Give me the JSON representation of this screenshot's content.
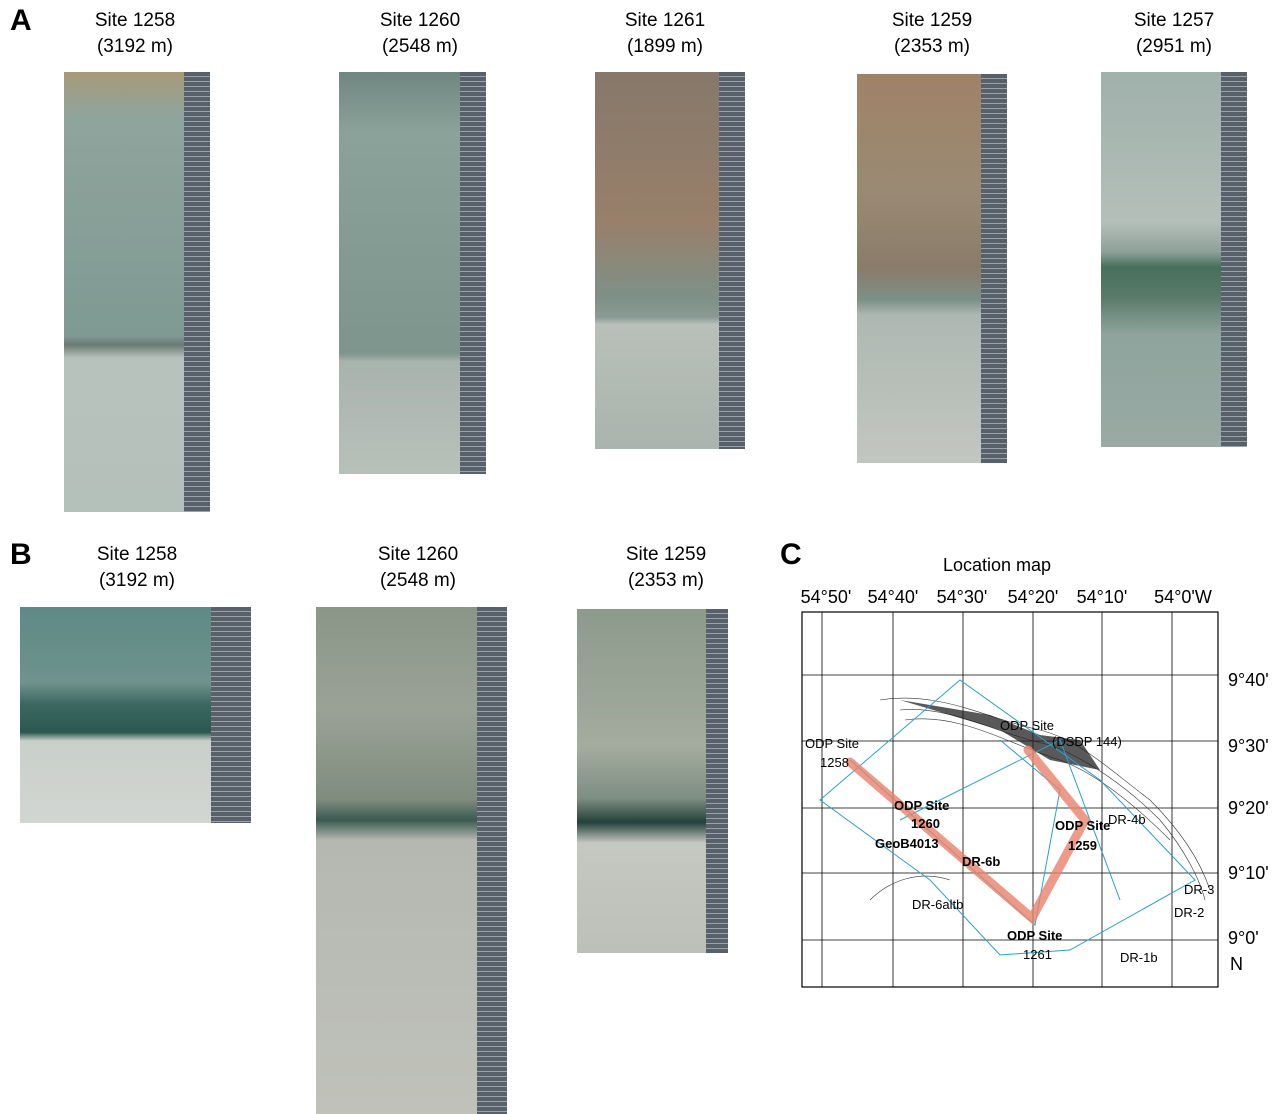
{
  "panel_a": {
    "label": "A",
    "sites": [
      {
        "name": "Site 1258",
        "depth": "(3192 m)"
      },
      {
        "name": "Site 1260",
        "depth": "(2548 m)"
      },
      {
        "name": "Site 1261",
        "depth": "(1899 m)"
      },
      {
        "name": "Site 1259",
        "depth": "(2353 m)"
      },
      {
        "name": "Site 1257",
        "depth": "(2951 m)"
      }
    ]
  },
  "panel_b": {
    "label": "B",
    "sites": [
      {
        "name": "Site 1258",
        "depth": "(3192 m)"
      },
      {
        "name": "Site 1260",
        "depth": "(2548 m)"
      },
      {
        "name": "Site 1259",
        "depth": "(2353 m)"
      }
    ]
  },
  "panel_c": {
    "label": "C",
    "title": "Location map",
    "lon_labels": [
      "54°50'",
      "54°40'",
      "54°30'",
      "54°20'",
      "54°10'",
      "54°0'W"
    ],
    "lat_labels": [
      "9°40'",
      "9°30'",
      "9°20'",
      "9°10'",
      "9°0'"
    ],
    "north": "N",
    "map_labels": [
      "ODP Site",
      "1258",
      "ODP Site",
      "1260",
      "GeoB4013",
      "DR-6b",
      "DR-6altb",
      "ODP Site",
      "1261",
      "ODP Site",
      "(DSDP 144)",
      "ODP Site",
      "1259",
      "DR-4b",
      "DR-3",
      "DR-2",
      "DR-1b"
    ]
  }
}
